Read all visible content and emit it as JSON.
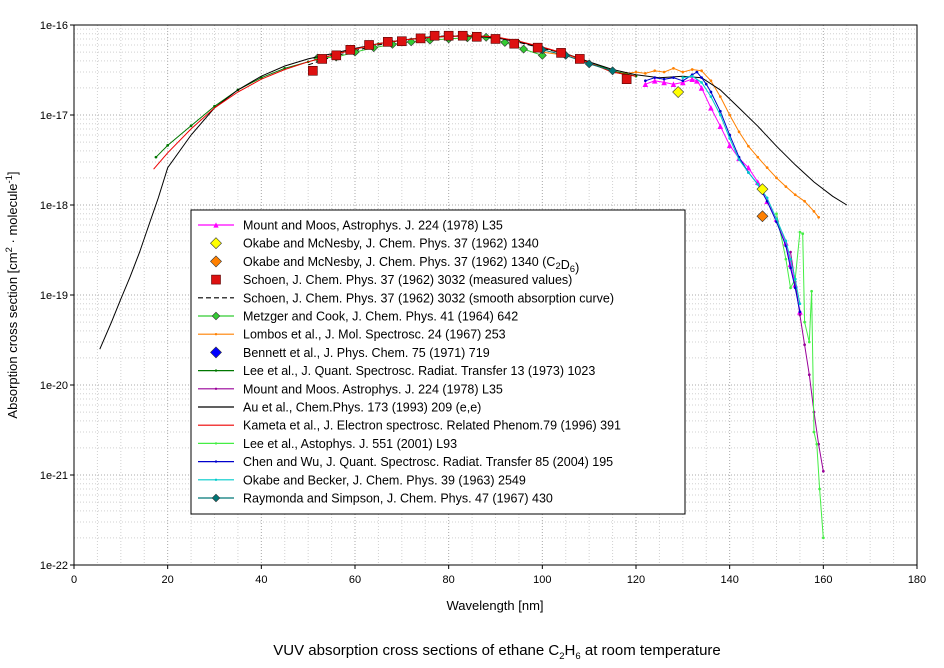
{
  "chart_data": {
    "type": "line",
    "title": "",
    "caption": {
      "prefix": "VUV absorption cross sections of ethane ",
      "formula": [
        [
          "C",
          "2"
        ],
        [
          "H",
          "6"
        ]
      ],
      "suffix": " at room temperature"
    },
    "xlabel": "Wavelength [nm]",
    "ylabel": {
      "prefix": "Absorption cross section [cm",
      "sup1": "2",
      "middle": " · molecule",
      "sup2": "-1",
      "suffix": "]"
    },
    "xscale": "linear",
    "yscale": "log",
    "xlim": [
      0,
      180
    ],
    "ylim": [
      1e-22,
      1e-16
    ],
    "xticks": [
      0,
      20,
      40,
      60,
      80,
      100,
      120,
      140,
      160,
      180
    ],
    "xtick_labels": [
      "0",
      "20",
      "40",
      "60",
      "80",
      "100",
      "120",
      "140",
      "160",
      "180"
    ],
    "yticks": [
      1e-22,
      1e-21,
      1e-20,
      1e-19,
      1e-18,
      1e-17,
      1e-16
    ],
    "ytick_labels": [
      "1e-22",
      "1e-21",
      "1e-20",
      "1e-19",
      "1e-18",
      "1e-17",
      "1e-16"
    ],
    "grid": true,
    "legend_position": "left-center",
    "series": [
      {
        "name": "Mount and Moos, Astrophys. J. 224 (1978) L35",
        "color": "#ff00ff",
        "style": "solid",
        "marker": "tri",
        "points": [
          [
            122,
            2.2e-17
          ],
          [
            124,
            2.4e-17
          ],
          [
            126,
            2.3e-17
          ],
          [
            128,
            2.2e-17
          ],
          [
            130,
            2.3e-17
          ],
          [
            132,
            2.5e-17
          ],
          [
            133,
            2.4e-17
          ],
          [
            134,
            2e-17
          ],
          [
            136,
            1.2e-17
          ],
          [
            138,
            7.5e-18
          ],
          [
            140,
            4.6e-18
          ],
          [
            142,
            3.3e-18
          ],
          [
            144,
            2.6e-18
          ],
          [
            146,
            1.8e-18
          ],
          [
            148,
            1.1e-18
          ],
          [
            150,
            7e-19
          ],
          [
            152,
            3.8e-19
          ],
          [
            153,
            2.2e-19
          ],
          [
            154,
            1.3e-19
          ],
          [
            155,
            6.5e-20
          ]
        ]
      },
      {
        "name": "Okabe and McNesby, J. Chem. Phys. 37 (1962) 1340",
        "color": "#ffff00",
        "style": "none",
        "marker": "diamond",
        "points": [
          [
            129,
            1.8e-17
          ],
          [
            147,
            1.5e-18
          ]
        ]
      },
      {
        "name": "Okabe and McNesby, J. Chem. Phys. 37 (1962) 1340 ",
        "sub": "(C2D6)",
        "color": "#ff8000",
        "style": "none",
        "marker": "diamond",
        "points": [
          [
            147,
            7.5e-19
          ]
        ]
      },
      {
        "name": "Schoen, J. Chem. Phys. 37 (1962)  3032 (measured values)",
        "color": "#dd1111",
        "style": "none",
        "marker": "square",
        "points": [
          [
            51,
            3.1e-17
          ],
          [
            53,
            4.2e-17
          ],
          [
            56,
            4.6e-17
          ],
          [
            59,
            5.3e-17
          ],
          [
            63,
            6e-17
          ],
          [
            67,
            6.5e-17
          ],
          [
            70,
            6.6e-17
          ],
          [
            74,
            7.1e-17
          ],
          [
            77,
            7.6e-17
          ],
          [
            80,
            7.6e-17
          ],
          [
            83,
            7.6e-17
          ],
          [
            86,
            7.4e-17
          ],
          [
            90,
            7e-17
          ],
          [
            94,
            6.2e-17
          ],
          [
            99,
            5.6e-17
          ],
          [
            104,
            4.9e-17
          ],
          [
            108,
            4.2e-17
          ],
          [
            118,
            2.5e-17
          ]
        ]
      },
      {
        "name": "Schoen, J. Chem. Phys. 37 (1962)  3032 (smooth absorption curve)",
        "color": "#000000",
        "style": "dashed",
        "marker": "none",
        "points": [
          [
            50,
            3.6e-17
          ],
          [
            55,
            4.4e-17
          ],
          [
            60,
            5.2e-17
          ],
          [
            65,
            6e-17
          ],
          [
            70,
            6.8e-17
          ],
          [
            75,
            7.3e-17
          ],
          [
            80,
            7.6e-17
          ],
          [
            85,
            7.6e-17
          ],
          [
            90,
            7.3e-17
          ],
          [
            95,
            6.4e-17
          ],
          [
            100,
            5.5e-17
          ],
          [
            105,
            4.8e-17
          ],
          [
            110,
            3.8e-17
          ],
          [
            115,
            3e-17
          ],
          [
            120,
            2.7e-17
          ]
        ]
      },
      {
        "name": "Metzger and Cook, J. Chem. Phys. 41 (1964) 642",
        "color": "#33cc33",
        "style": "solid",
        "marker": "diamond",
        "points": [
          [
            52,
            4.3e-17
          ],
          [
            56,
            4.4e-17
          ],
          [
            60,
            5e-17
          ],
          [
            64,
            5.6e-17
          ],
          [
            68,
            6.1e-17
          ],
          [
            72,
            6.5e-17
          ],
          [
            76,
            6.8e-17
          ],
          [
            80,
            7e-17
          ],
          [
            84,
            7.2e-17
          ],
          [
            88,
            7.3e-17
          ],
          [
            92,
            6.4e-17
          ],
          [
            96,
            5.4e-17
          ],
          [
            100,
            4.6e-17
          ]
        ]
      },
      {
        "name": "Lombos et al., J. Mol. Spectrosc. 24 (1967) 253",
        "color": "#ff8000",
        "style": "solid",
        "marker": "dot",
        "points": [
          [
            100,
            5e-17
          ],
          [
            105,
            4.6e-17
          ],
          [
            110,
            3.8e-17
          ],
          [
            115,
            3e-17
          ],
          [
            118,
            2.9e-17
          ],
          [
            120,
            3e-17
          ],
          [
            122,
            2.9e-17
          ],
          [
            124,
            3.1e-17
          ],
          [
            126,
            3e-17
          ],
          [
            128,
            3.3e-17
          ],
          [
            130,
            3e-17
          ],
          [
            132,
            3.2e-17
          ],
          [
            134,
            3.1e-17
          ],
          [
            136,
            2.4e-17
          ],
          [
            138,
            1.6e-17
          ],
          [
            140,
            1e-17
          ],
          [
            142,
            6.5e-18
          ],
          [
            144,
            4.5e-18
          ],
          [
            146,
            3.4e-18
          ],
          [
            148,
            2.6e-18
          ],
          [
            150,
            2e-18
          ],
          [
            152,
            1.6e-18
          ],
          [
            154,
            1.3e-18
          ],
          [
            156,
            1.1e-18
          ],
          [
            158,
            8.5e-19
          ],
          [
            159,
            7.3e-19
          ]
        ]
      },
      {
        "name": "Bennett et al., J. Phys. Chem. 75 (1971) 719",
        "color": "#0000ff",
        "style": "none",
        "marker": "diamond",
        "points": []
      },
      {
        "name": "Lee et al., J. Quant. Spectrosc. Radiat. Transfer 13 (1973) 1023",
        "color": "#007700",
        "style": "solid",
        "marker": "dot",
        "points": [
          [
            17.5,
            3.4e-18
          ],
          [
            20,
            4.6e-18
          ],
          [
            25,
            7.6e-18
          ],
          [
            30,
            1.25e-17
          ],
          [
            35,
            1.9e-17
          ],
          [
            40,
            2.6e-17
          ],
          [
            45,
            3.3e-17
          ],
          [
            50,
            3.9e-17
          ],
          [
            55,
            4.6e-17
          ],
          [
            60,
            5.4e-17
          ],
          [
            65,
            6.2e-17
          ],
          [
            70,
            6.8e-17
          ],
          [
            75,
            7.2e-17
          ],
          [
            80,
            7.5e-17
          ],
          [
            85,
            7.6e-17
          ],
          [
            90,
            7.3e-17
          ],
          [
            95,
            6.6e-17
          ],
          [
            100,
            5.6e-17
          ],
          [
            105,
            4.8e-17
          ],
          [
            110,
            3.9e-17
          ],
          [
            115,
            3.1e-17
          ],
          [
            120,
            2.7e-17
          ]
        ]
      },
      {
        "name": "Mount and Moos. Astrophys. J. 224 (1978) L35",
        "color": "#990099",
        "style": "solid",
        "marker": "dot",
        "points": [
          [
            153,
            3e-19
          ],
          [
            154,
            1.4e-19
          ],
          [
            155,
            6e-20
          ],
          [
            156,
            2.8e-20
          ],
          [
            157,
            1.3e-20
          ],
          [
            158,
            5e-21
          ],
          [
            159,
            2.2e-21
          ],
          [
            160,
            1.1e-21
          ]
        ]
      },
      {
        "name": "Au et al., Chem.Phys. 173 (1993) 209 (e,e)",
        "color": "#000000",
        "style": "solid",
        "marker": "none",
        "points": [
          [
            5.5,
            2.5e-20
          ],
          [
            8,
            5e-20
          ],
          [
            10,
            9e-20
          ],
          [
            12,
            1.6e-19
          ],
          [
            14,
            3e-19
          ],
          [
            16,
            6e-19
          ],
          [
            18,
            1.2e-18
          ],
          [
            20,
            2.6e-18
          ],
          [
            25,
            6e-18
          ],
          [
            30,
            1.2e-17
          ],
          [
            35,
            1.9e-17
          ],
          [
            40,
            2.7e-17
          ],
          [
            45,
            3.5e-17
          ],
          [
            50,
            4.2e-17
          ],
          [
            55,
            4.8e-17
          ],
          [
            60,
            5.5e-17
          ],
          [
            65,
            6.2e-17
          ],
          [
            70,
            6.8e-17
          ],
          [
            75,
            7.2e-17
          ],
          [
            80,
            7.5e-17
          ],
          [
            85,
            7.5e-17
          ],
          [
            90,
            7.2e-17
          ],
          [
            95,
            6.5e-17
          ],
          [
            100,
            5.6e-17
          ],
          [
            105,
            4.8e-17
          ],
          [
            110,
            3.9e-17
          ],
          [
            115,
            3.2e-17
          ],
          [
            120,
            2.8e-17
          ],
          [
            125,
            2.6e-17
          ],
          [
            130,
            2.7e-17
          ],
          [
            134,
            2.6e-17
          ],
          [
            138,
            1.9e-17
          ],
          [
            142,
            1.2e-17
          ],
          [
            146,
            7.5e-18
          ],
          [
            150,
            4.5e-18
          ],
          [
            154,
            2.8e-18
          ],
          [
            158,
            1.8e-18
          ],
          [
            162,
            1.25e-18
          ],
          [
            165,
            1e-18
          ]
        ]
      },
      {
        "name": "Kameta et al., J. Electron spectrosc. Related Phenom.79 (1996) 391",
        "color": "#ee0000",
        "style": "solid",
        "marker": "none",
        "points": [
          [
            17,
            2.5e-18
          ],
          [
            20,
            3.8e-18
          ],
          [
            25,
            7e-18
          ],
          [
            30,
            1.2e-17
          ],
          [
            35,
            1.8e-17
          ],
          [
            40,
            2.5e-17
          ],
          [
            45,
            3.2e-17
          ],
          [
            50,
            3.9e-17
          ],
          [
            55,
            4.6e-17
          ],
          [
            60,
            5.4e-17
          ],
          [
            65,
            6.2e-17
          ],
          [
            70,
            6.8e-17
          ],
          [
            75,
            7.2e-17
          ],
          [
            80,
            7.5e-17
          ],
          [
            85,
            7.6e-17
          ],
          [
            90,
            7.4e-17
          ],
          [
            95,
            6.6e-17
          ],
          [
            100,
            5.7e-17
          ],
          [
            105,
            4.8e-17
          ],
          [
            110,
            3.8e-17
          ],
          [
            115,
            3e-17
          ],
          [
            120,
            2.7e-17
          ]
        ]
      },
      {
        "name": "Lee et al., Astophys. J. 551 (2001) L93",
        "color": "#44ee44",
        "style": "solid",
        "marker": "dot",
        "points": [
          [
            150,
            8e-19
          ],
          [
            152,
            2.5e-19
          ],
          [
            153,
            1.2e-19
          ],
          [
            154,
            1.5e-19
          ],
          [
            155,
            5e-19
          ],
          [
            155.6,
            4.8e-19
          ],
          [
            156,
            5e-20
          ],
          [
            157,
            3e-20
          ],
          [
            157.5,
            1.1e-19
          ],
          [
            158,
            3e-21
          ],
          [
            158.6,
            2.2e-21
          ],
          [
            159.2,
            7e-22
          ],
          [
            160,
            2e-22
          ]
        ]
      },
      {
        "name": "Chen and Wu, J. Quant. Spectrosc. Radiat. Transfer 85 (2004) 195",
        "color": "#0000cc",
        "style": "solid",
        "marker": "dot",
        "points": [
          [
            122,
            2.4e-17
          ],
          [
            124,
            2.6e-17
          ],
          [
            126,
            2.5e-17
          ],
          [
            128,
            2.6e-17
          ],
          [
            130,
            2.4e-17
          ],
          [
            132,
            2.8e-17
          ],
          [
            133,
            3e-17
          ],
          [
            134,
            2.6e-17
          ],
          [
            135,
            2.2e-17
          ],
          [
            136,
            1.8e-17
          ],
          [
            138,
            1.1e-17
          ],
          [
            140,
            6e-18
          ],
          [
            142,
            3.4e-18
          ],
          [
            144,
            2.3e-18
          ],
          [
            146,
            1.7e-18
          ],
          [
            148,
            1.1e-18
          ],
          [
            150,
            6.5e-19
          ],
          [
            152,
            3.5e-19
          ],
          [
            153,
            2e-19
          ],
          [
            154,
            1.2e-19
          ],
          [
            155,
            6.5e-20
          ]
        ]
      },
      {
        "name": "Okabe and Becker, J. Chem. Phys. 39 (1963) 2549",
        "color": "#00cccc",
        "style": "solid",
        "marker": "dot",
        "points": [
          [
            130,
            2.6e-17
          ],
          [
            132,
            2.7e-17
          ],
          [
            134,
            2.3e-17
          ],
          [
            136,
            1.6e-17
          ],
          [
            138,
            1e-17
          ],
          [
            140,
            5.5e-18
          ],
          [
            142,
            3.2e-18
          ],
          [
            144,
            2.3e-18
          ],
          [
            146,
            1.7e-18
          ],
          [
            148,
            1.2e-18
          ],
          [
            150,
            7e-19
          ],
          [
            152,
            4e-19
          ],
          [
            153,
            2.5e-19
          ],
          [
            154,
            1.5e-19
          ],
          [
            155,
            8e-20
          ]
        ]
      },
      {
        "name": "Raymonda and Simpson, J. Chem. Phys. 47 (1967) 430",
        "color": "#007777",
        "style": "solid",
        "marker": "diamond",
        "points": [
          [
            100,
            5.3e-17
          ],
          [
            105,
            4.6e-17
          ],
          [
            110,
            3.7e-17
          ],
          [
            115,
            3.1e-17
          ]
        ]
      }
    ]
  }
}
